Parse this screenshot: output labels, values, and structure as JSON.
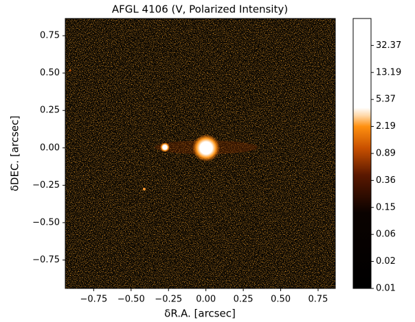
{
  "chart_data": {
    "type": "image",
    "title": "AFGL 4106 (V, Polarized Intensity)",
    "xlabel": "δR.A. [arcsec]",
    "ylabel": "δDEC. [arcsec]",
    "xlim": [
      -0.94,
      0.865
    ],
    "ylim": [
      -0.94,
      0.865
    ],
    "xticks": [
      {
        "value": -0.75,
        "label": "−0.75"
      },
      {
        "value": -0.5,
        "label": "−0.50"
      },
      {
        "value": -0.25,
        "label": "−0.25"
      },
      {
        "value": 0,
        "label": "0.00"
      },
      0.25,
      {
        "value": 0.5,
        "label": "0.50"
      },
      0.75
    ],
    "yticks": [
      {
        "value": -0.75,
        "label": "−0.75"
      },
      {
        "value": -0.5,
        "label": "−0.50"
      },
      {
        "value": -0.25,
        "label": "−0.25"
      },
      {
        "value": 0,
        "label": "0.00"
      },
      0.25,
      {
        "value": 0.5,
        "label": "0.50"
      },
      0.75
    ],
    "colorbar": {
      "scale": "log",
      "lim": [
        0.01,
        79.4
      ],
      "ticks": [
        0.01,
        {
          "value": 0.02457,
          "label": "0.02"
        },
        {
          "value": 0.0603,
          "label": "0.06"
        },
        {
          "value": 0.148,
          "label": "0.15"
        },
        {
          "value": 0.3633,
          "label": "0.36"
        },
        {
          "value": 0.8918,
          "label": "0.89"
        },
        2.19,
        5.37,
        13.19,
        32.37
      ]
    }
  }
}
